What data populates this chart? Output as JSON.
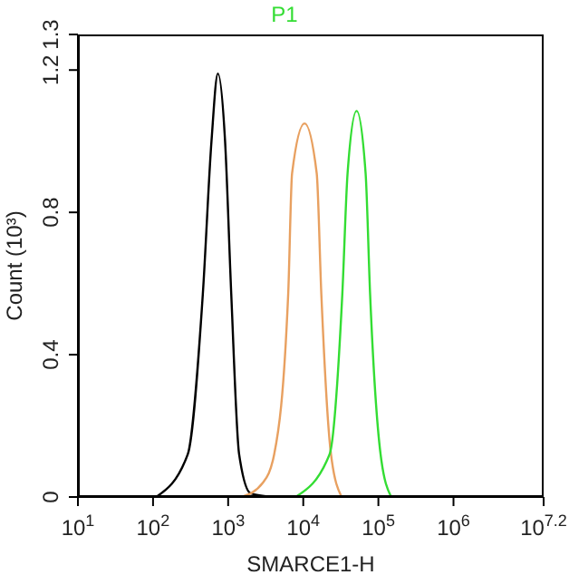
{
  "chart_data": {
    "type": "line",
    "title": "P1",
    "xlabel": "SMARCE1-H",
    "ylabel": "Count (10³)",
    "log": "x",
    "marker": "none",
    "line_style": "solid",
    "xlim": [
      10,
      15848932
    ],
    "xticks": [
      {
        "value": 10,
        "label": "10$^{1}$"
      },
      {
        "value": 100,
        "label": "10$^{2}$"
      },
      {
        "value": 1000,
        "label": "10$^{3}$"
      },
      {
        "value": 10000,
        "label": "10$^{4}$"
      },
      {
        "value": 100000,
        "label": "10$^{5}$"
      },
      {
        "value": 1000000,
        "label": "10$^{6}$"
      },
      {
        "value": 15848932,
        "label": "10$^{7.2}$"
      }
    ],
    "ylim": [
      0,
      1.3
    ],
    "yticks": [
      0,
      0.4,
      0.8,
      1.2,
      1.3
    ],
    "series": [
      {
        "color": "#000000",
        "x": [
          110,
          290,
          460,
          600,
          730,
          910,
          1100,
          1400,
          2000,
          4200
        ],
        "values": [
          0,
          0.12,
          0.57,
          1.0,
          1.19,
          1.0,
          0.57,
          0.12,
          0.01,
          0
        ]
      },
      {
        "color": "#e8a060",
        "x": [
          1500,
          2900,
          4100,
          6300,
          7100,
          10400,
          15100,
          17400,
          23400,
          32400
        ],
        "values": [
          0,
          0.04,
          0.12,
          0.57,
          0.91,
          1.05,
          0.91,
          0.57,
          0.12,
          0
        ]
      },
      {
        "color": "#33dd33",
        "x": [
          7900,
          22400,
          33100,
          38900,
          51300,
          67600,
          77600,
          107000,
          148000
        ],
        "values": [
          0,
          0.12,
          0.57,
          0.91,
          1.085,
          0.91,
          0.57,
          0.12,
          0
        ]
      }
    ]
  }
}
